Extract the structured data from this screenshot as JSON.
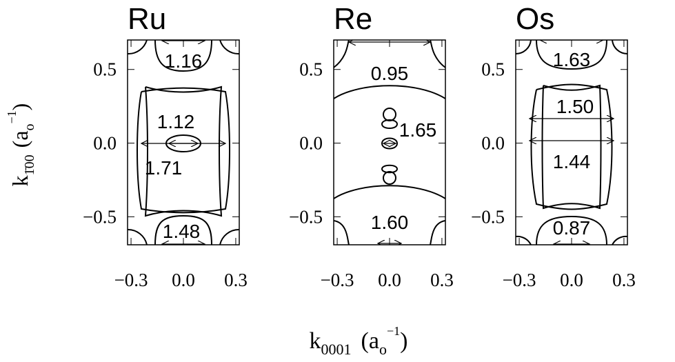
{
  "chart_data": [
    {
      "type": "contour",
      "title": "Ru",
      "xlim": [
        -0.32,
        0.32
      ],
      "ylim": [
        -0.69,
        0.7
      ],
      "xticks": [
        {
          "value": -0.3,
          "label": "−0.3"
        },
        {
          "value": 0,
          "label": "0.0"
        },
        0.3
      ],
      "yticks": [
        {
          "value": -0.5,
          "label": "−0.5"
        },
        {
          "value": 0,
          "label": "0.0"
        },
        0.5
      ],
      "annotations": [
        "1.16",
        "1.12",
        "1.71",
        "1.48"
      ]
    },
    {
      "type": "contour",
      "title": "Re",
      "xlim": [
        -0.32,
        0.32
      ],
      "ylim": [
        -0.69,
        0.7
      ],
      "xticks": [
        {
          "value": -0.3,
          "label": "−0.3"
        },
        {
          "value": 0,
          "label": "0.0"
        },
        0.3
      ],
      "yticks": [
        {
          "value": -0.5,
          "label": "−0.5"
        },
        {
          "value": 0,
          "label": "0.0"
        },
        0.5
      ],
      "annotations": [
        "0.95",
        "1.65",
        "1.60"
      ]
    },
    {
      "type": "contour",
      "title": "Os",
      "xlim": [
        -0.32,
        0.32
      ],
      "ylim": [
        -0.69,
        0.7
      ],
      "xticks": [
        {
          "value": -0.3,
          "label": "−0.3"
        },
        {
          "value": 0,
          "label": "0.0"
        },
        0.3
      ],
      "yticks": [
        {
          "value": -0.5,
          "label": "−0.5"
        },
        {
          "value": 0,
          "label": "0.0"
        },
        0.5
      ],
      "annotations": [
        "1.63",
        "1.50",
        "1.44",
        "0.87"
      ]
    }
  ],
  "y_label": {
    "symbol": "k",
    "subscript": "1̄00",
    "unit_open": "(a",
    "unit_sub": "o",
    "unit_sup": "−1",
    "unit_close": ")"
  },
  "x_label": {
    "symbol": "k",
    "subscript": "0001",
    "unit_open": "(a",
    "unit_sub": "o",
    "unit_sup": "−1",
    "unit_close": ")"
  }
}
